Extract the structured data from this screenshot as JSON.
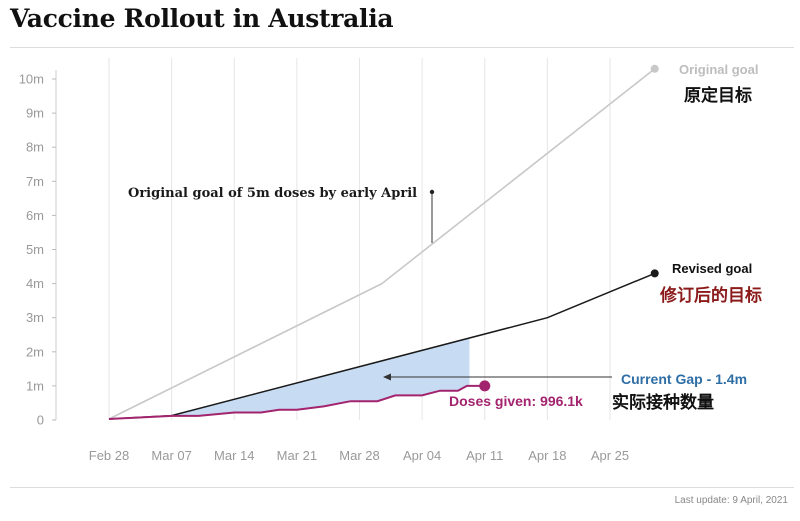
{
  "header": {
    "title": "Vaccine Rollout in Australia"
  },
  "footer": {
    "text": "Last update: 9 April, 2021"
  },
  "annotations": {
    "original_goal_note": "Original goal of 5m doses by early April",
    "original_goal_label": "Original goal",
    "original_goal_label_cn": "原定目标",
    "revised_goal_label": "Revised goal",
    "revised_goal_label_cn": "修订后的目标",
    "current_gap_label": "Current Gap - 1.4m",
    "doses_given_label": "Doses given: 996.1k",
    "doses_given_label_cn": "实际接种数量"
  },
  "colors": {
    "original": "#c8c8c8",
    "revised": "#1a1a1a",
    "doses": "#a3246e",
    "gap_fill": "#c7dcf2",
    "gap_text": "#2f6ea5",
    "cn_red": "#8b1a1a",
    "grid": "#e6e6e6",
    "tick": "#999999"
  },
  "chart_data": {
    "type": "line",
    "title": "Vaccine Rollout in Australia",
    "xlabel": "",
    "ylabel": "",
    "x_unit": "days since Feb 28",
    "x_ticks": [
      {
        "label": "Feb 28",
        "x": 0
      },
      {
        "label": "Mar 07",
        "x": 7
      },
      {
        "label": "Mar 14",
        "x": 14
      },
      {
        "label": "Mar 21",
        "x": 21
      },
      {
        "label": "Mar 28",
        "x": 28
      },
      {
        "label": "Apr 04",
        "x": 35
      },
      {
        "label": "Apr 11",
        "x": 42
      },
      {
        "label": "Apr 18",
        "x": 49
      },
      {
        "label": "Apr 25",
        "x": 56
      }
    ],
    "y_ticks": [
      {
        "label": "0",
        "y": 0
      },
      {
        "label": "1m",
        "y": 1
      },
      {
        "label": "2m",
        "y": 2
      },
      {
        "label": "3m",
        "y": 3
      },
      {
        "label": "4m",
        "y": 4
      },
      {
        "label": "5m",
        "y": 5
      },
      {
        "label": "6m",
        "y": 6
      },
      {
        "label": "7m",
        "y": 7
      },
      {
        "label": "8m",
        "y": 8
      },
      {
        "label": "9m",
        "y": 9
      },
      {
        "label": "10m",
        "y": 10
      }
    ],
    "xlim": [
      0,
      56
    ],
    "ylim": [
      0,
      10.5
    ],
    "grid": "vertical",
    "series": [
      {
        "name": "Original goal",
        "values": [
          [
            0,
            0.03
          ],
          [
            30.5,
            4.0
          ],
          [
            61,
            10.3
          ]
        ]
      },
      {
        "name": "Revised goal",
        "values": [
          [
            0,
            0.03
          ],
          [
            7,
            0.13
          ],
          [
            49,
            3.0
          ],
          [
            61,
            4.3
          ]
        ]
      },
      {
        "name": "Doses given",
        "values": [
          [
            0,
            0.03
          ],
          [
            7,
            0.12
          ],
          [
            10,
            0.12
          ],
          [
            14,
            0.22
          ],
          [
            17,
            0.22
          ],
          [
            19,
            0.3
          ],
          [
            21,
            0.3
          ],
          [
            24,
            0.4
          ],
          [
            27,
            0.55
          ],
          [
            30,
            0.55
          ],
          [
            32,
            0.72
          ],
          [
            35,
            0.72
          ],
          [
            37,
            0.86
          ],
          [
            39,
            0.86
          ],
          [
            40,
            1.0
          ],
          [
            42,
            1.0
          ]
        ]
      }
    ],
    "gap_region": {
      "from_x": 0,
      "to_x": 40.3,
      "value_m": 1.4
    }
  }
}
